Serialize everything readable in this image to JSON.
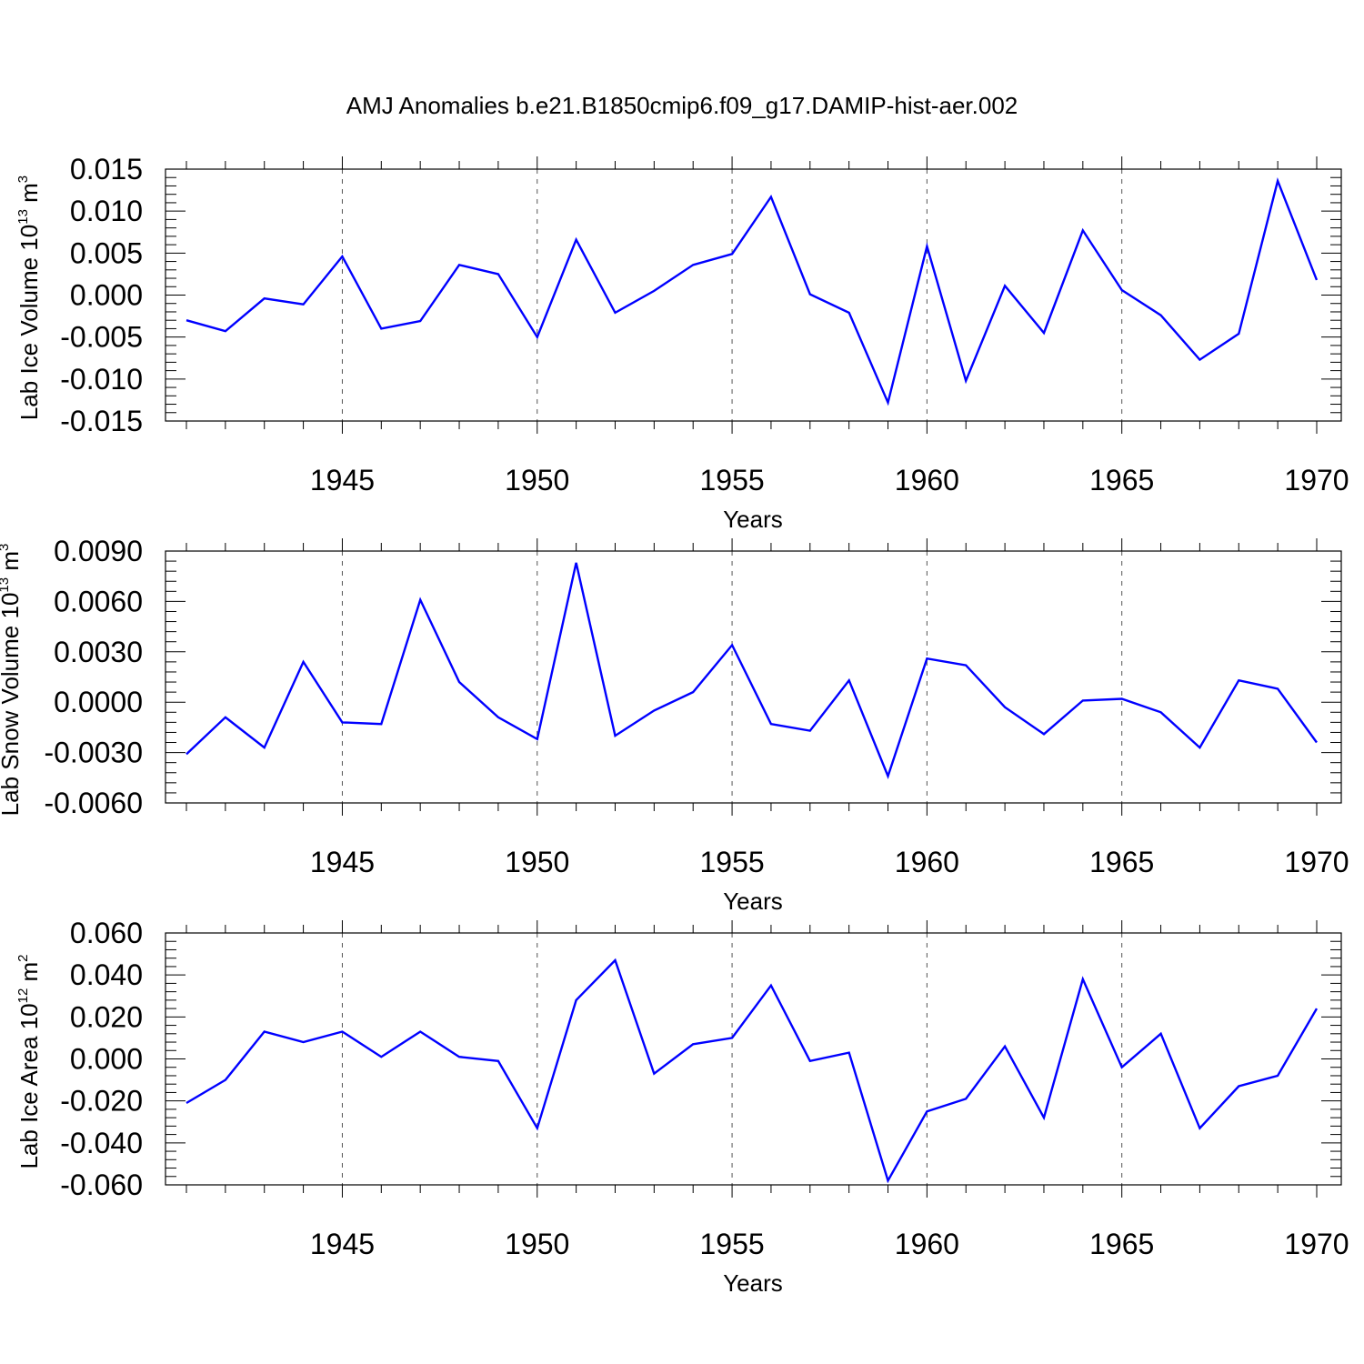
{
  "title": "AMJ Anomalies b.e21.B1850cmip6.f09_g17.DAMIP-hist-aer.002",
  "line_color": "#0000ff",
  "chart_data": [
    {
      "type": "line",
      "xlabel": "Years",
      "ylabel": {
        "base": "Lab Ice Volume 10",
        "exp": "13",
        "unit": " m",
        "unit_exp": "3"
      },
      "xlim": [
        1941,
        1970
      ],
      "ylim": [
        -0.015,
        0.015
      ],
      "xticks": [
        1945,
        1950,
        1955,
        1960,
        1965,
        1970
      ],
      "xtick_labels": [
        "1945",
        "1950",
        "1955",
        "1960",
        "1965",
        "1970"
      ],
      "yticks": [
        -0.015,
        -0.01,
        -0.005,
        0.0,
        0.005,
        0.01,
        0.015
      ],
      "ytick_labels": [
        "-0.015",
        "-0.010",
        "-0.005",
        "0.000",
        "0.005",
        "0.010",
        "0.015"
      ],
      "grid": "dashed vertical at major x ticks",
      "x": [
        1941,
        1942,
        1943,
        1944,
        1945,
        1946,
        1947,
        1948,
        1949,
        1950,
        1951,
        1952,
        1953,
        1954,
        1955,
        1956,
        1957,
        1958,
        1959,
        1960,
        1961,
        1962,
        1963,
        1964,
        1965,
        1966,
        1967,
        1968,
        1969,
        1970
      ],
      "series": [
        {
          "values": [
            -0.003,
            -0.0043,
            -0.0004,
            -0.0011,
            0.0046,
            -0.004,
            -0.0031,
            0.0036,
            0.0025,
            -0.005,
            0.0066,
            -0.0021,
            0.0005,
            0.0036,
            0.0049,
            0.0117,
            0.0001,
            -0.0021,
            -0.0128,
            0.0058,
            -0.0102,
            0.0011,
            -0.0045,
            0.0077,
            0.0006,
            -0.0024,
            -0.0077,
            -0.0046,
            0.0136,
            0.0018
          ]
        }
      ]
    },
    {
      "type": "line",
      "xlabel": "Years",
      "ylabel": {
        "base": "Lab Snow Volume 10",
        "exp": "13",
        "unit": " m",
        "unit_exp": "3"
      },
      "xlim": [
        1941,
        1970
      ],
      "ylim": [
        -0.006,
        0.009
      ],
      "xticks": [
        1945,
        1950,
        1955,
        1960,
        1965,
        1970
      ],
      "xtick_labels": [
        "1945",
        "1950",
        "1955",
        "1960",
        "1965",
        "1970"
      ],
      "yticks": [
        -0.006,
        -0.003,
        0.0,
        0.003,
        0.006,
        0.009
      ],
      "ytick_labels": [
        "-0.0060",
        "-0.0030",
        "0.0000",
        "0.0030",
        "0.0060",
        "0.0090"
      ],
      "grid": "dashed vertical at major x ticks",
      "x": [
        1941,
        1942,
        1943,
        1944,
        1945,
        1946,
        1947,
        1948,
        1949,
        1950,
        1951,
        1952,
        1953,
        1954,
        1955,
        1956,
        1957,
        1958,
        1959,
        1960,
        1961,
        1962,
        1963,
        1964,
        1965,
        1966,
        1967,
        1968,
        1969,
        1970
      ],
      "series": [
        {
          "values": [
            -0.0031,
            -0.0009,
            -0.0027,
            0.0024,
            -0.0012,
            -0.0013,
            0.0061,
            0.0012,
            -0.0009,
            -0.0022,
            0.0083,
            -0.002,
            -0.0005,
            0.0006,
            0.0034,
            -0.0013,
            -0.0017,
            0.0013,
            -0.0044,
            0.0026,
            0.0022,
            -0.0003,
            -0.0019,
            0.0001,
            0.0002,
            -0.0006,
            -0.0027,
            0.0013,
            0.0008,
            -0.0024
          ]
        }
      ]
    },
    {
      "type": "line",
      "xlabel": "Years",
      "ylabel": {
        "base": "Lab Ice Area 10",
        "exp": "12",
        "unit": " m",
        "unit_exp": "2"
      },
      "xlim": [
        1941,
        1970
      ],
      "ylim": [
        -0.06,
        0.06
      ],
      "xticks": [
        1945,
        1950,
        1955,
        1960,
        1965,
        1970
      ],
      "xtick_labels": [
        "1945",
        "1950",
        "1955",
        "1960",
        "1965",
        "1970"
      ],
      "yticks": [
        -0.06,
        -0.04,
        -0.02,
        0.0,
        0.02,
        0.04,
        0.06
      ],
      "ytick_labels": [
        "-0.060",
        "-0.040",
        "-0.020",
        "0.000",
        "0.020",
        "0.040",
        "0.060"
      ],
      "grid": "dashed vertical at major x ticks",
      "x": [
        1941,
        1942,
        1943,
        1944,
        1945,
        1946,
        1947,
        1948,
        1949,
        1950,
        1951,
        1952,
        1953,
        1954,
        1955,
        1956,
        1957,
        1958,
        1959,
        1960,
        1961,
        1962,
        1963,
        1964,
        1965,
        1966,
        1967,
        1968,
        1969,
        1970
      ],
      "series": [
        {
          "values": [
            -0.021,
            -0.01,
            0.013,
            0.008,
            0.013,
            0.001,
            0.013,
            0.001,
            -0.001,
            -0.033,
            0.028,
            0.047,
            -0.007,
            0.007,
            0.01,
            0.035,
            -0.001,
            0.003,
            -0.058,
            -0.025,
            -0.019,
            0.006,
            -0.028,
            0.038,
            -0.004,
            0.012,
            -0.033,
            -0.013,
            -0.008,
            0.024
          ]
        }
      ]
    }
  ]
}
